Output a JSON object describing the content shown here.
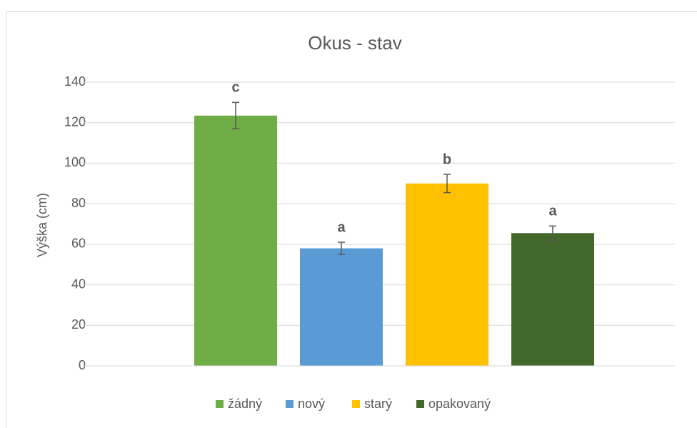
{
  "chart_data": {
    "type": "bar",
    "title": "Okus - stav",
    "y_label": "Výška (cm)",
    "series": [
      {
        "name": "žádný",
        "color": "#70ad47",
        "values": [
          123.5
        ],
        "errors": [
          6.5
        ],
        "annotation": "c"
      },
      {
        "name": "nový",
        "color": "#5b9bd5",
        "values": [
          58
        ],
        "errors": [
          3
        ],
        "annotation": "a"
      },
      {
        "name": "starý",
        "color": "#ffc000",
        "values": [
          90
        ],
        "errors": [
          4.5
        ],
        "annotation": "b"
      },
      {
        "name": "opakovaný",
        "color": "#43682b",
        "values": [
          65.5
        ],
        "errors": [
          3.5
        ],
        "annotation": "a"
      }
    ],
    "ylim": [
      0,
      140
    ],
    "yticks": [
      0,
      20,
      40,
      60,
      80,
      100,
      120,
      140
    ],
    "grid": true,
    "legend": "bottom"
  }
}
